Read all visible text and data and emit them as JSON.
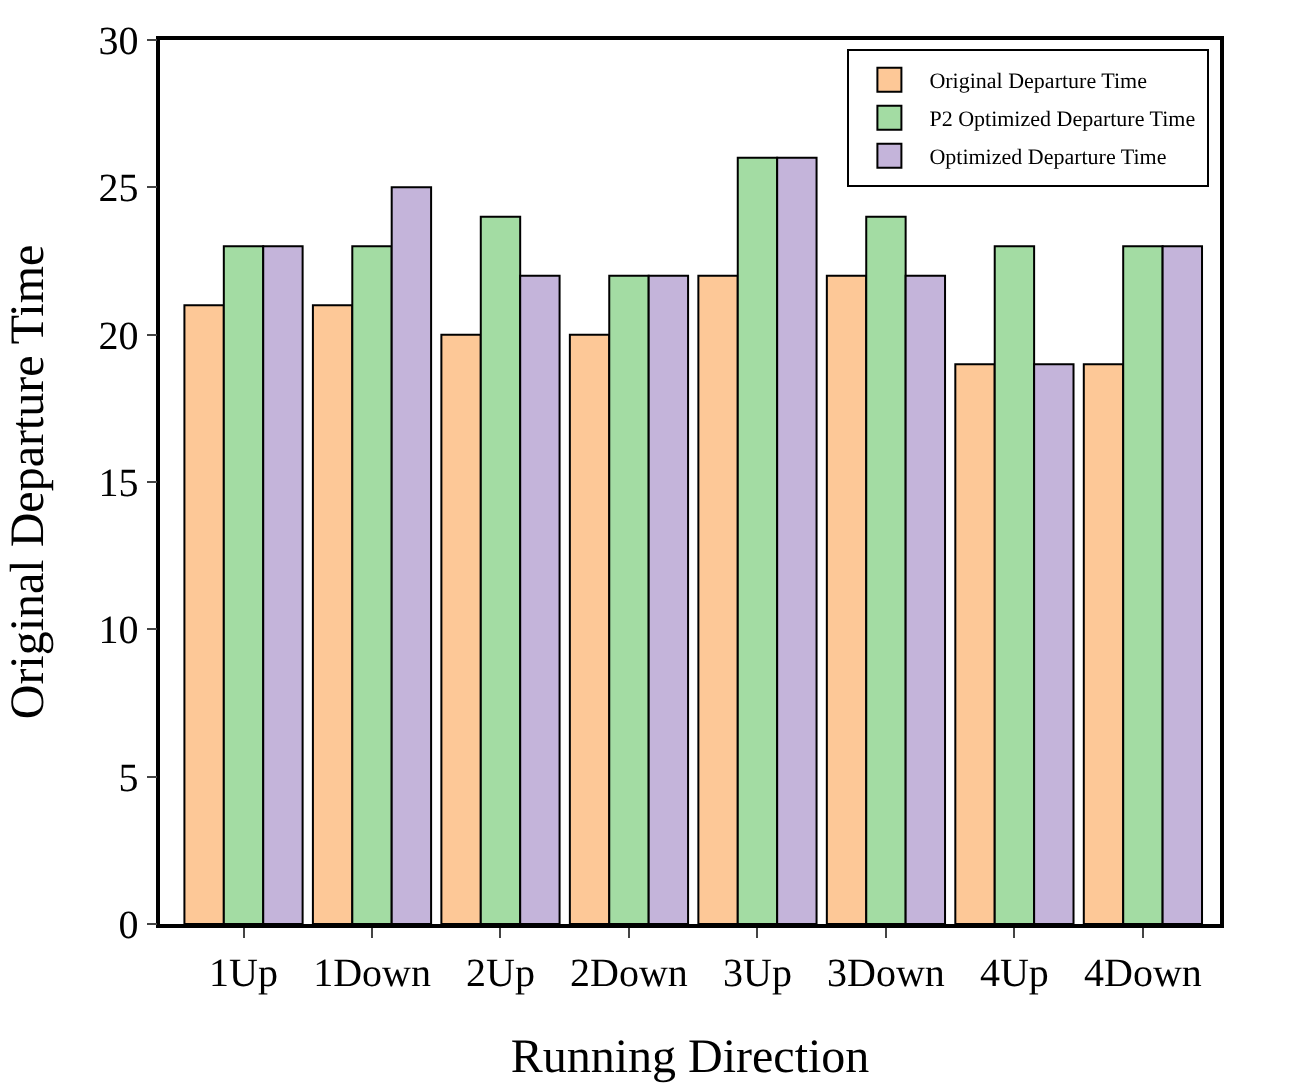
{
  "chart_data": {
    "type": "bar",
    "xlabel": "Running Direction",
    "ylabel": "Original Departure Time",
    "categories": [
      "1Up",
      "1Down",
      "2Up",
      "2Down",
      "3Up",
      "3Down",
      "4Up",
      "4Down"
    ],
    "series": [
      {
        "name": "Original Departure Time",
        "color": "#fdc897",
        "values": [
          21,
          21,
          20,
          20,
          22,
          22,
          19,
          19
        ]
      },
      {
        "name": "P2 Optimized Departure Time",
        "color": "#a3dca3",
        "values": [
          23,
          23,
          24,
          22,
          26,
          24,
          23,
          23
        ]
      },
      {
        "name": "Optimized Departure Time",
        "color": "#c4b4da",
        "values": [
          23,
          25,
          22,
          22,
          26,
          22,
          19,
          23
        ]
      }
    ],
    "ylim": [
      0,
      30
    ],
    "yticks": [
      0,
      5,
      10,
      15,
      20,
      25,
      30
    ],
    "grid": false,
    "legend": "top right"
  }
}
